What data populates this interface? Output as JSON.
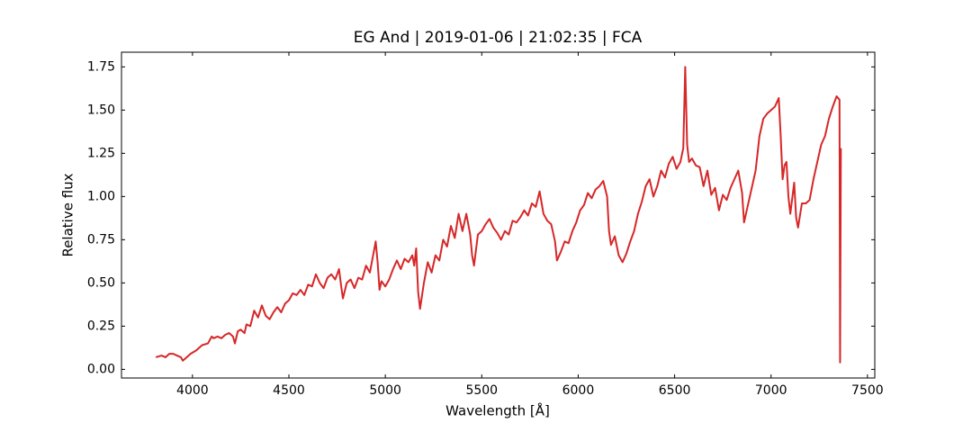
{
  "chart_data": {
    "type": "line",
    "title": "EG And | 2019-01-06 | 21:02:35 | FCA",
    "xlabel": "Wavelength [Å]",
    "ylabel": "Relative flux",
    "color": "#d62728",
    "x": [
      3810,
      3840,
      3860,
      3880,
      3900,
      3920,
      3940,
      3950,
      3970,
      3990,
      4020,
      4050,
      4080,
      4090,
      4100,
      4110,
      4130,
      4150,
      4170,
      4190,
      4210,
      4220,
      4235,
      4250,
      4270,
      4280,
      4300,
      4320,
      4340,
      4360,
      4380,
      4400,
      4420,
      4440,
      4460,
      4480,
      4500,
      4520,
      4540,
      4560,
      4580,
      4600,
      4620,
      4640,
      4660,
      4680,
      4700,
      4720,
      4740,
      4760,
      4770,
      4780,
      4800,
      4820,
      4840,
      4860,
      4880,
      4900,
      4920,
      4940,
      4950,
      4960,
      4970,
      4980,
      5000,
      5020,
      5040,
      5060,
      5080,
      5100,
      5120,
      5140,
      5150,
      5160,
      5170,
      5180,
      5200,
      5220,
      5240,
      5260,
      5280,
      5300,
      5320,
      5340,
      5360,
      5380,
      5400,
      5420,
      5440,
      5450,
      5460,
      5480,
      5500,
      5520,
      5540,
      5560,
      5580,
      5600,
      5620,
      5640,
      5660,
      5680,
      5700,
      5720,
      5740,
      5760,
      5780,
      5800,
      5820,
      5840,
      5860,
      5880,
      5890,
      5910,
      5930,
      5950,
      5970,
      5990,
      6010,
      6030,
      6050,
      6070,
      6090,
      6110,
      6130,
      6150,
      6160,
      6170,
      6190,
      6210,
      6230,
      6250,
      6270,
      6290,
      6310,
      6330,
      6350,
      6370,
      6390,
      6410,
      6430,
      6450,
      6470,
      6490,
      6510,
      6530,
      6545,
      6555,
      6565,
      6575,
      6590,
      6610,
      6630,
      6650,
      6670,
      6690,
      6710,
      6730,
      6750,
      6770,
      6790,
      6810,
      6830,
      6850,
      6860,
      6880,
      6900,
      6920,
      6940,
      6960,
      6980,
      7000,
      7020,
      7040,
      7050,
      7060,
      7070,
      7080,
      7090,
      7100,
      7120,
      7130,
      7140,
      7160,
      7180,
      7200,
      7220,
      7240,
      7260,
      7280,
      7300,
      7320,
      7340,
      7355,
      7358,
      7362
    ],
    "values": [
      0.07,
      0.08,
      0.07,
      0.09,
      0.09,
      0.08,
      0.07,
      0.05,
      0.07,
      0.09,
      0.11,
      0.14,
      0.15,
      0.17,
      0.19,
      0.18,
      0.19,
      0.18,
      0.2,
      0.21,
      0.19,
      0.15,
      0.22,
      0.23,
      0.21,
      0.26,
      0.25,
      0.34,
      0.3,
      0.37,
      0.31,
      0.29,
      0.33,
      0.36,
      0.33,
      0.38,
      0.4,
      0.44,
      0.43,
      0.46,
      0.43,
      0.49,
      0.48,
      0.55,
      0.5,
      0.47,
      0.53,
      0.55,
      0.52,
      0.58,
      0.49,
      0.41,
      0.5,
      0.52,
      0.47,
      0.53,
      0.52,
      0.6,
      0.56,
      0.68,
      0.74,
      0.62,
      0.46,
      0.51,
      0.48,
      0.52,
      0.58,
      0.63,
      0.58,
      0.64,
      0.62,
      0.66,
      0.6,
      0.7,
      0.45,
      0.35,
      0.5,
      0.62,
      0.56,
      0.66,
      0.63,
      0.75,
      0.71,
      0.83,
      0.76,
      0.9,
      0.8,
      0.9,
      0.78,
      0.66,
      0.6,
      0.78,
      0.8,
      0.84,
      0.87,
      0.82,
      0.79,
      0.75,
      0.8,
      0.78,
      0.86,
      0.85,
      0.88,
      0.92,
      0.89,
      0.96,
      0.94,
      1.03,
      0.9,
      0.86,
      0.84,
      0.74,
      0.63,
      0.68,
      0.74,
      0.73,
      0.8,
      0.85,
      0.92,
      0.95,
      1.02,
      0.99,
      1.04,
      1.06,
      1.09,
      1.0,
      0.8,
      0.72,
      0.77,
      0.66,
      0.62,
      0.67,
      0.74,
      0.8,
      0.9,
      0.97,
      1.06,
      1.1,
      1.0,
      1.06,
      1.15,
      1.11,
      1.19,
      1.23,
      1.16,
      1.2,
      1.28,
      1.75,
      1.3,
      1.2,
      1.22,
      1.18,
      1.17,
      1.06,
      1.15,
      1.01,
      1.05,
      0.92,
      1.01,
      0.98,
      1.05,
      1.1,
      1.15,
      1.02,
      0.85,
      0.95,
      1.05,
      1.15,
      1.35,
      1.45,
      1.48,
      1.5,
      1.52,
      1.57,
      1.35,
      1.1,
      1.18,
      1.2,
      1.0,
      0.9,
      1.08,
      0.88,
      0.82,
      0.96,
      0.96,
      0.98,
      1.1,
      1.2,
      1.3,
      1.35,
      1.45,
      1.52,
      1.58,
      1.56,
      0.04,
      1.28
    ],
    "xlim": [
      3632,
      7538
    ],
    "ylim": [
      -0.05,
      1.835
    ],
    "xticks": [
      4000,
      4500,
      5000,
      5500,
      6000,
      6500,
      7000,
      7500
    ],
    "yticks": [
      {
        "value": 0,
        "label": "0.00"
      },
      {
        "value": 0.25,
        "label": "0.25"
      },
      {
        "value": 0.5,
        "label": "0.50"
      },
      {
        "value": 0.75,
        "label": "0.75"
      },
      {
        "value": 1,
        "label": "1.00"
      },
      {
        "value": 1.25,
        "label": "1.25"
      },
      {
        "value": 1.5,
        "label": "1.50"
      },
      {
        "value": 1.75,
        "label": "1.75"
      }
    ]
  }
}
